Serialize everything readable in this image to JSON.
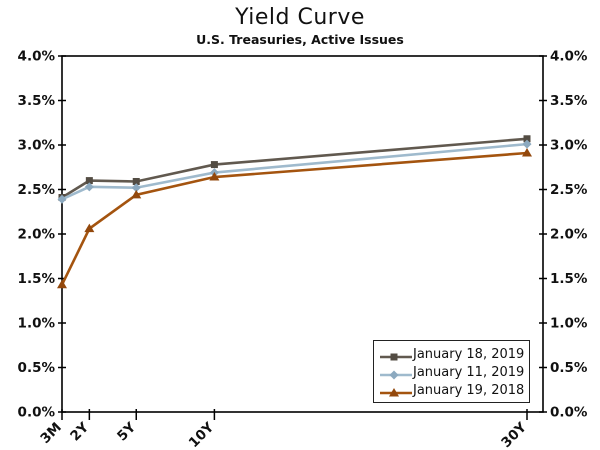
{
  "chart_data": {
    "type": "line",
    "title": "Yield Curve",
    "subtitle": "U.S. Treasuries, Active Issues",
    "x_tick_labels": [
      "3M",
      "2Y",
      "5Y",
      "10Y",
      "30Y"
    ],
    "x_years": [
      0.25,
      2,
      5,
      10,
      30
    ],
    "y_tick_labels": [
      "0.0%",
      "0.5%",
      "1.0%",
      "1.5%",
      "2.0%",
      "2.5%",
      "3.0%",
      "3.5%",
      "4.0%"
    ],
    "y_tick_values": [
      0,
      0.5,
      1,
      1.5,
      2,
      2.5,
      3,
      3.5,
      4
    ],
    "ylim": [
      0,
      4
    ],
    "grid": false,
    "axis_color": "#000000",
    "legend_position": "bottom-right",
    "series": [
      {
        "name": "January 18, 2019",
        "color": "#61594F",
        "marker_color": "#534C43",
        "marker": "square",
        "values": [
          2.41,
          2.6,
          2.59,
          2.78,
          3.07
        ]
      },
      {
        "name": "January 11, 2019",
        "color": "#9FBACD",
        "marker_color": "#8CA9BF",
        "marker": "diamond",
        "values": [
          2.39,
          2.53,
          2.52,
          2.69,
          3.01
        ]
      },
      {
        "name": "January 19, 2018",
        "color": "#A4540F",
        "marker_color": "#93480C",
        "marker": "triangle",
        "values": [
          1.43,
          2.06,
          2.44,
          2.64,
          2.91
        ]
      }
    ]
  }
}
